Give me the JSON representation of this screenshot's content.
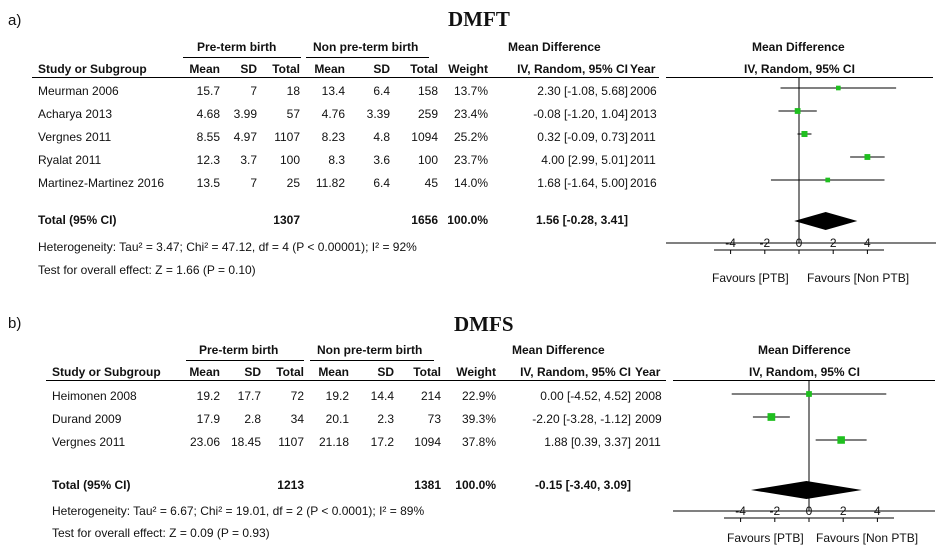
{
  "panels": [
    {
      "label": "a)",
      "title": "DMFT",
      "headers": {
        "group1": "Pre-term birth",
        "group2": "Non pre-term birth",
        "md": "Mean Difference",
        "plot_md": "Mean Difference",
        "study": "Study or Subgroup",
        "mean": "Mean",
        "sd": "SD",
        "total": "Total",
        "weight": "Weight",
        "ci": "IV, Random, 95% CI",
        "year": "Year",
        "plot_ci": "IV, Random, 95% CI"
      },
      "rows": [
        {
          "study": "Meurman 2006",
          "m1": "15.7",
          "sd1": "7",
          "n1": "18",
          "m2": "13.4",
          "sd2": "6.4",
          "n2": "158",
          "weight": "13.7%",
          "ci": "2.30 [-1.08, 5.68]",
          "year": "2006"
        },
        {
          "study": "Acharya 2013",
          "m1": "4.68",
          "sd1": "3.99",
          "n1": "57",
          "m2": "4.76",
          "sd2": "3.39",
          "n2": "259",
          "weight": "23.4%",
          "ci": "-0.08 [-1.20, 1.04]",
          "year": "2013"
        },
        {
          "study": "Vergnes 2011",
          "m1": "8.55",
          "sd1": "4.97",
          "n1": "1107",
          "m2": "8.23",
          "sd2": "4.8",
          "n2": "1094",
          "weight": "25.2%",
          "ci": "0.32 [-0.09, 0.73]",
          "year": "2011"
        },
        {
          "study": "Ryalat 2011",
          "m1": "12.3",
          "sd1": "3.7",
          "n1": "100",
          "m2": "8.3",
          "sd2": "3.6",
          "n2": "100",
          "weight": "23.7%",
          "ci": "4.00 [2.99, 5.01]",
          "year": "2011"
        },
        {
          "study": "Martinez-Martinez 2016",
          "m1": "13.5",
          "sd1": "7",
          "n1": "25",
          "m2": "11.82",
          "sd2": "6.4",
          "n2": "45",
          "weight": "14.0%",
          "ci": "1.68 [-1.64, 5.00]",
          "year": "2016"
        }
      ],
      "total": {
        "label": "Total (95% CI)",
        "n1": "1307",
        "n2": "1656",
        "weight": "100.0%",
        "ci": "1.56 [-0.28, 3.41]"
      },
      "heterogeneity": "Heterogeneity: Tau² = 3.47; Chi² = 47.12, df = 4 (P < 0.00001); I² = 92%",
      "overall": "Test for overall effect: Z = 1.66 (P = 0.10)",
      "favours_left": "Favours [PTB]",
      "favours_right": "Favours [Non PTB]"
    },
    {
      "label": "b)",
      "title": "DMFS",
      "headers": {
        "group1": "Pre-term birth",
        "group2": "Non pre-term birth",
        "md": "Mean Difference",
        "plot_md": "Mean Difference",
        "study": "Study or Subgroup",
        "mean": "Mean",
        "sd": "SD",
        "total": "Total",
        "weight": "Weight",
        "ci": "IV, Random, 95% CI",
        "year": "Year",
        "plot_ci": "IV, Random, 95% CI"
      },
      "rows": [
        {
          "study": "Heimonen 2008",
          "m1": "19.2",
          "sd1": "17.7",
          "n1": "72",
          "m2": "19.2",
          "sd2": "14.4",
          "n2": "214",
          "weight": "22.9%",
          "ci": "0.00 [-4.52, 4.52]",
          "year": "2008"
        },
        {
          "study": "Durand 2009",
          "m1": "17.9",
          "sd1": "2.8",
          "n1": "34",
          "m2": "20.1",
          "sd2": "2.3",
          "n2": "73",
          "weight": "39.3%",
          "ci": "-2.20 [-3.28, -1.12]",
          "year": "2009"
        },
        {
          "study": "Vergnes 2011",
          "m1": "23.06",
          "sd1": "18.45",
          "n1": "1107",
          "m2": "21.18",
          "sd2": "17.2",
          "n2": "1094",
          "weight": "37.8%",
          "ci": "1.88 [0.39, 3.37]",
          "year": "2011"
        }
      ],
      "total": {
        "label": "Total (95% CI)",
        "n1": "1213",
        "n2": "1381",
        "weight": "100.0%",
        "ci": "-0.15 [-3.40, 3.09]"
      },
      "heterogeneity": "Heterogeneity: Tau² = 6.67; Chi² = 19.01, df = 2 (P < 0.0001); I² = 89%",
      "overall": "Test for overall effect: Z = 0.09 (P = 0.93)",
      "favours_left": "Favours [PTB]",
      "favours_right": "Favours [Non PTB]"
    }
  ],
  "chart_data": [
    {
      "type": "forest",
      "title": "DMFT",
      "xlim": [
        -5,
        5
      ],
      "ticks": [
        -4,
        -2,
        0,
        2,
        4
      ],
      "marker_color": "#1fbf1f",
      "studies": [
        {
          "name": "Meurman 2006",
          "md": 2.3,
          "lower": -1.08,
          "upper": 5.68,
          "weight": 13.7
        },
        {
          "name": "Acharya 2013",
          "md": -0.08,
          "lower": -1.2,
          "upper": 1.04,
          "weight": 23.4
        },
        {
          "name": "Vergnes 2011",
          "md": 0.32,
          "lower": -0.09,
          "upper": 0.73,
          "weight": 25.2
        },
        {
          "name": "Ryalat 2011",
          "md": 4.0,
          "lower": 2.99,
          "upper": 5.01,
          "weight": 23.7
        },
        {
          "name": "Martinez-Martinez 2016",
          "md": 1.68,
          "lower": -1.64,
          "upper": 5.0,
          "weight": 14.0
        }
      ],
      "pooled": {
        "md": 1.56,
        "lower": -0.28,
        "upper": 3.41
      }
    },
    {
      "type": "forest",
      "title": "DMFS",
      "xlim": [
        -5,
        5
      ],
      "ticks": [
        -4,
        -2,
        0,
        2,
        4
      ],
      "marker_color": "#1fbf1f",
      "studies": [
        {
          "name": "Heimonen 2008",
          "md": 0.0,
          "lower": -4.52,
          "upper": 4.52,
          "weight": 22.9
        },
        {
          "name": "Durand 2009",
          "md": -2.2,
          "lower": -3.28,
          "upper": -1.12,
          "weight": 39.3
        },
        {
          "name": "Vergnes 2011",
          "md": 1.88,
          "lower": 0.39,
          "upper": 3.37,
          "weight": 37.8
        }
      ],
      "pooled": {
        "md": -0.15,
        "lower": -3.4,
        "upper": 3.09
      }
    }
  ]
}
